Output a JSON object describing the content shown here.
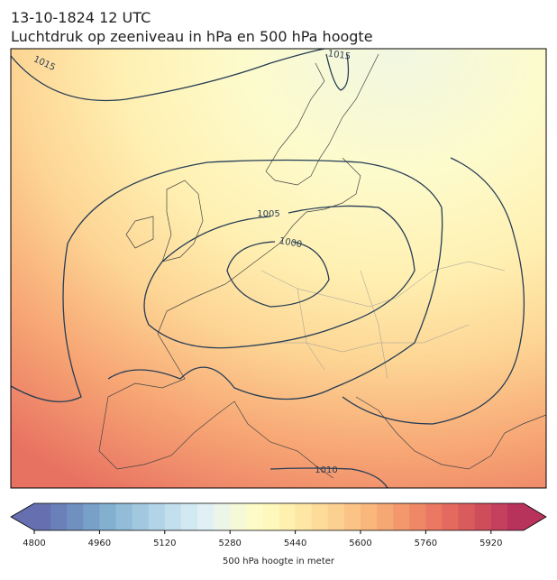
{
  "map": {
    "date": "13-10-1824 12 UTC",
    "title": "Luchtdruk op zeeniveau in hPa en 500 hPa hoogte",
    "contour_labels": [
      1015,
      1015,
      1005,
      1000,
      1010
    ],
    "colorbar": {
      "label": "500 hPa hoogte in meter",
      "lim": [
        4800,
        6000
      ],
      "ticks": [
        4800,
        4960,
        5120,
        5280,
        5440,
        5600,
        5760,
        5920
      ],
      "colors": [
        "#6670b0",
        "#6a80b8",
        "#7090c0",
        "#78a0c8",
        "#84b0d0",
        "#92bcd8",
        "#a2c8e0",
        "#b2d4e8",
        "#c2dfee",
        "#d2e9f2",
        "#e0f0f4",
        "#ecf5e8",
        "#f6f9d8",
        "#fdfcc8",
        "#fff8bd",
        "#fff0b0",
        "#fee6a4",
        "#fddb98",
        "#fcd090",
        "#fbc486",
        "#f9b77c",
        "#f6a874",
        "#f3986c",
        "#ef8866",
        "#ea7862",
        "#e4695f",
        "#da5b5c",
        "#cf4d5b",
        "#c4405c",
        "#b8335c"
      ]
    }
  }
}
